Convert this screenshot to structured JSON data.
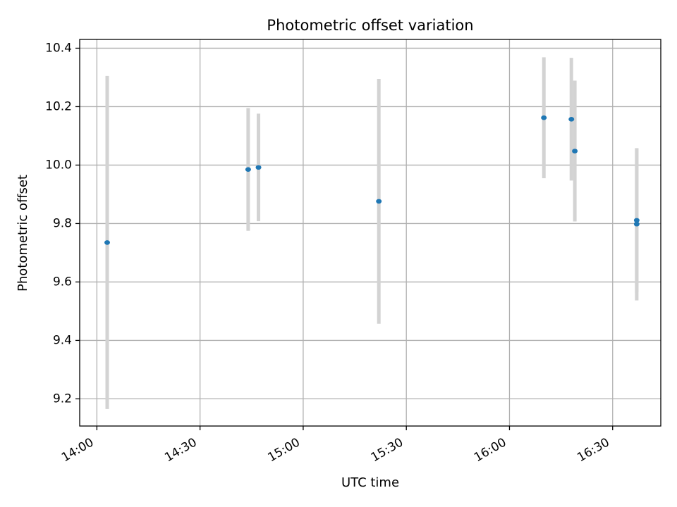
{
  "chart_data": {
    "type": "scatter",
    "title": "Photometric offset variation",
    "xlabel": "UTC time",
    "ylabel": "Photometric offset",
    "x_unit": "time of day (UTC)",
    "xlim": [
      "13:55",
      "16:44"
    ],
    "ylim": [
      9.107,
      10.43
    ],
    "xticks": [
      "14:00",
      "14:30",
      "15:00",
      "15:30",
      "16:00",
      "16:30"
    ],
    "yticks": [
      9.2,
      9.4,
      9.6,
      9.8,
      10.0,
      10.2,
      10.4
    ],
    "ytick_labels": [
      "9.2",
      "9.4",
      "9.6",
      "9.8",
      "10.0",
      "10.2",
      "10.4"
    ],
    "grid": true,
    "legend": "none",
    "point_color": "#1f77b4",
    "errorbar_color": "#d3d3d3",
    "points": [
      {
        "time": "14:03",
        "y": 9.735,
        "ylow": 9.165,
        "yhigh": 10.305
      },
      {
        "time": "14:44",
        "y": 9.985,
        "ylow": 9.775,
        "yhigh": 10.195
      },
      {
        "time": "14:47",
        "y": 9.992,
        "ylow": 9.808,
        "yhigh": 10.176
      },
      {
        "time": "15:22",
        "y": 9.876,
        "ylow": 9.457,
        "yhigh": 10.295
      },
      {
        "time": "16:10",
        "y": 10.162,
        "ylow": 9.955,
        "yhigh": 10.369
      },
      {
        "time": "16:18",
        "y": 10.157,
        "ylow": 9.947,
        "yhigh": 10.367
      },
      {
        "time": "16:19",
        "y": 10.048,
        "ylow": 9.807,
        "yhigh": 10.289
      },
      {
        "time": "16:37",
        "y": 9.798,
        "ylow": 9.537,
        "yhigh": 10.057
      },
      {
        "time": "16:37",
        "y": 9.811,
        "ylow": 9.564,
        "yhigh": 10.058
      }
    ]
  }
}
